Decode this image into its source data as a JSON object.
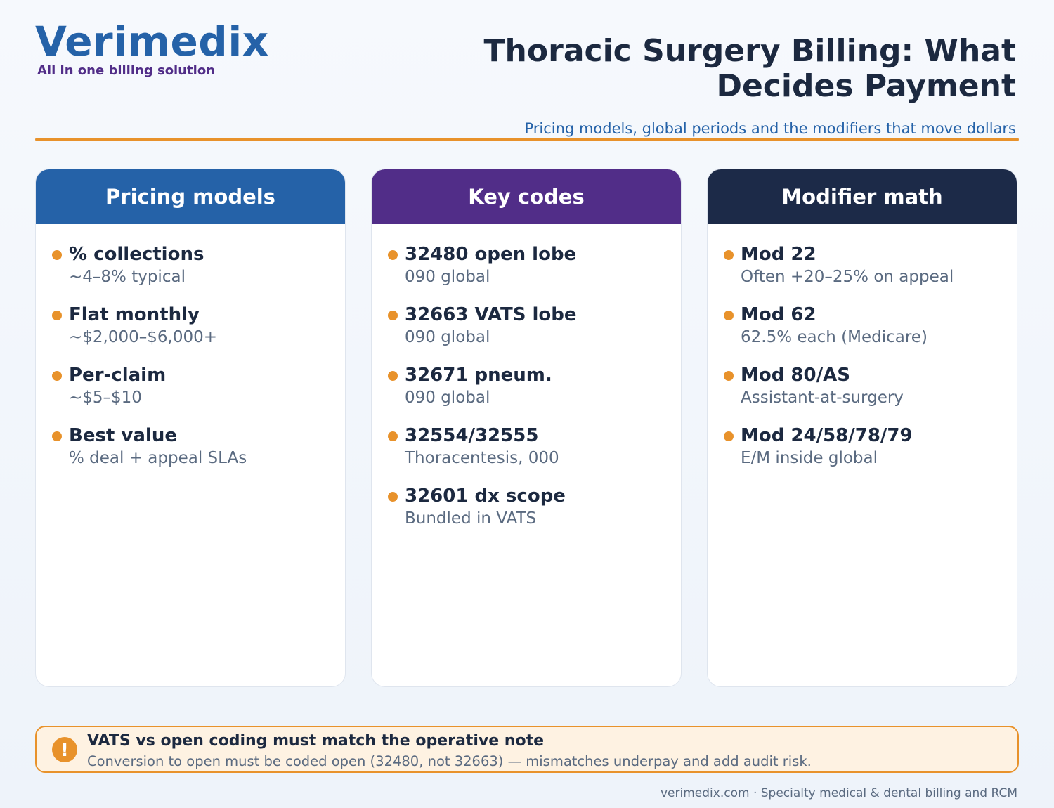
{
  "brand": {
    "name": "Verimedix",
    "tagline": "All in one billing solution"
  },
  "header": {
    "title": "Thoracic Surgery Billing: What Decides Payment",
    "subtitle": "Pricing models, global periods and the modifiers that move dollars"
  },
  "columns": [
    {
      "title": "Pricing models",
      "color": "#2562a8",
      "items": [
        {
          "title": "% collections",
          "sub": "~4–8% typical"
        },
        {
          "title": "Flat monthly",
          "sub": "~$2,000–$6,000+"
        },
        {
          "title": "Per-claim",
          "sub": "~$5–$10"
        },
        {
          "title": "Best value",
          "sub": "% deal + appeal SLAs"
        }
      ]
    },
    {
      "title": "Key codes",
      "color": "#512d88",
      "items": [
        {
          "title": "32480 open lobe",
          "sub": "090 global"
        },
        {
          "title": "32663 VATS lobe",
          "sub": "090 global"
        },
        {
          "title": "32671 pneum.",
          "sub": "090 global"
        },
        {
          "title": "32554/32555",
          "sub": "Thoracentesis, 000"
        },
        {
          "title": "32601 dx scope",
          "sub": "Bundled in VATS"
        }
      ]
    },
    {
      "title": "Modifier math",
      "color": "#1c2a48",
      "items": [
        {
          "title": "Mod 22",
          "sub": "Often +20–25% on appeal"
        },
        {
          "title": "Mod 62",
          "sub": "62.5% each (Medicare)"
        },
        {
          "title": "Mod 80/AS",
          "sub": "Assistant-at-surgery"
        },
        {
          "title": "Mod 24/58/78/79",
          "sub": "E/M inside global"
        }
      ]
    }
  ],
  "callout": {
    "icon": "exclamation-icon",
    "icon_glyph": "!",
    "title": "VATS vs open coding must match the operative note",
    "text": "Conversion to open must be coded open (32480, not 32663) — mismatches underpay and add audit risk."
  },
  "footer": {
    "text": "verimedix.com · Specialty medical & dental billing and RCM"
  },
  "colors": {
    "accent": "#e8922b",
    "brand_blue": "#2562a8",
    "brand_purple": "#512d88",
    "navy": "#1c2a48"
  }
}
